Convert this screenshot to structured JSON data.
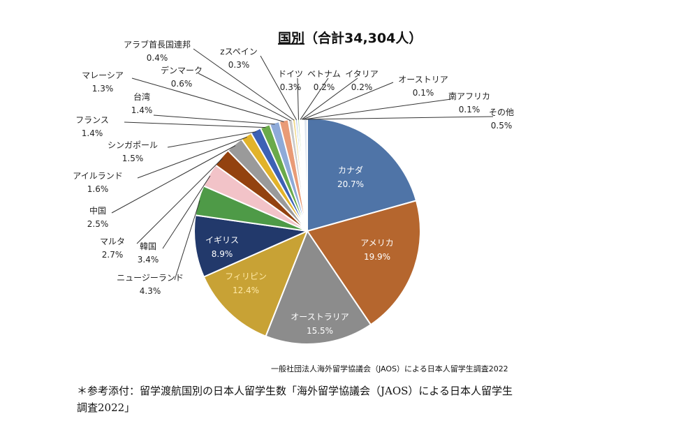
{
  "chart_data": {
    "type": "pie",
    "title": "国別（合計34,304人）",
    "title_underlined_part": "国別",
    "title_rest": "（合計34,304人）",
    "source": "一般社団法人海外留学協議会（JAOS）による日本人留学生調査2022",
    "slices": [
      {
        "label": "カナダ",
        "value_label": "20.7%",
        "value": 20.7,
        "color": "#4f74a7",
        "label_inside": true
      },
      {
        "label": "アメリカ",
        "value_label": "19.9%",
        "value": 19.9,
        "color": "#b5662e",
        "label_inside": true
      },
      {
        "label": "オーストラリア",
        "value_label": "15.5%",
        "value": 15.5,
        "color": "#8c8c8c",
        "label_inside": true
      },
      {
        "label": "フィリピン",
        "value_label": "12.4%",
        "value": 12.4,
        "color": "#c8a235",
        "label_inside": true
      },
      {
        "label": "イギリス",
        "value_label": "8.9%",
        "value": 8.9,
        "color": "#22396b",
        "label_inside": true
      },
      {
        "label": "ニュージーランド",
        "value_label": "4.3%",
        "value": 4.3,
        "color": "#4e9a47",
        "label_inside": false
      },
      {
        "label": "韓国",
        "value_label": "3.4%",
        "value": 3.4,
        "color": "#f2c3c8",
        "label_inside": false
      },
      {
        "label": "マルタ",
        "value_label": "2.7%",
        "value": 2.7,
        "color": "#93420f",
        "label_inside": false
      },
      {
        "label": "中国",
        "value_label": "2.5%",
        "value": 2.5,
        "color": "#9a9a9a",
        "label_inside": false
      },
      {
        "label": "アイルランド",
        "value_label": "1.6%",
        "value": 1.6,
        "color": "#e2b32a",
        "label_inside": false
      },
      {
        "label": "シンガポール",
        "value_label": "1.5%",
        "value": 1.5,
        "color": "#3d61b5",
        "label_inside": false
      },
      {
        "label": "フランス",
        "value_label": "1.4%",
        "value": 1.4,
        "color": "#6aaa4a",
        "label_inside": false
      },
      {
        "label": "台湾",
        "value_label": "1.4%",
        "value": 1.4,
        "color": "#8eaad8",
        "label_inside": false
      },
      {
        "label": "マレーシア",
        "value_label": "1.3%",
        "value": 1.3,
        "color": "#e99b76",
        "label_inside": false
      },
      {
        "label": "デンマーク",
        "value_label": "0.6%",
        "value": 0.6,
        "color": "#c9c9c9",
        "label_inside": false
      },
      {
        "label": "アラブ首長国連邦",
        "value_label": "0.4%",
        "value": 0.4,
        "color": "#f0d98a",
        "label_inside": false
      },
      {
        "label": "zスペイン",
        "value_label": "0.3%",
        "value": 0.3,
        "color": "#a4bde3",
        "label_inside": false
      },
      {
        "label": "ドイツ",
        "value_label": "0.3%",
        "value": 0.3,
        "color": "#b8d8a8",
        "label_inside": false
      },
      {
        "label": "ベトナム",
        "value_label": "0.2%",
        "value": 0.2,
        "color": "#7a7a7a",
        "label_inside": false
      },
      {
        "label": "イタリア",
        "value_label": "0.2%",
        "value": 0.2,
        "color": "#d8b070",
        "label_inside": false
      },
      {
        "label": "オーストリア",
        "value_label": "0.1%",
        "value": 0.1,
        "color": "#6a8fc6",
        "label_inside": false
      },
      {
        "label": "南アフリカ",
        "value_label": "0.1%",
        "value": 0.1,
        "color": "#9cc08a",
        "label_inside": false
      },
      {
        "label": "その他",
        "value_label": "0.5%",
        "value": 0.5,
        "color": "#dfe6f0",
        "label_inside": false
      }
    ]
  },
  "note": {
    "line1": "＊参考添付：留学渡航国別の日本人留学生数「海外留学協議会（JAOS）による日本人留学生",
    "line2": "調査2022」"
  }
}
